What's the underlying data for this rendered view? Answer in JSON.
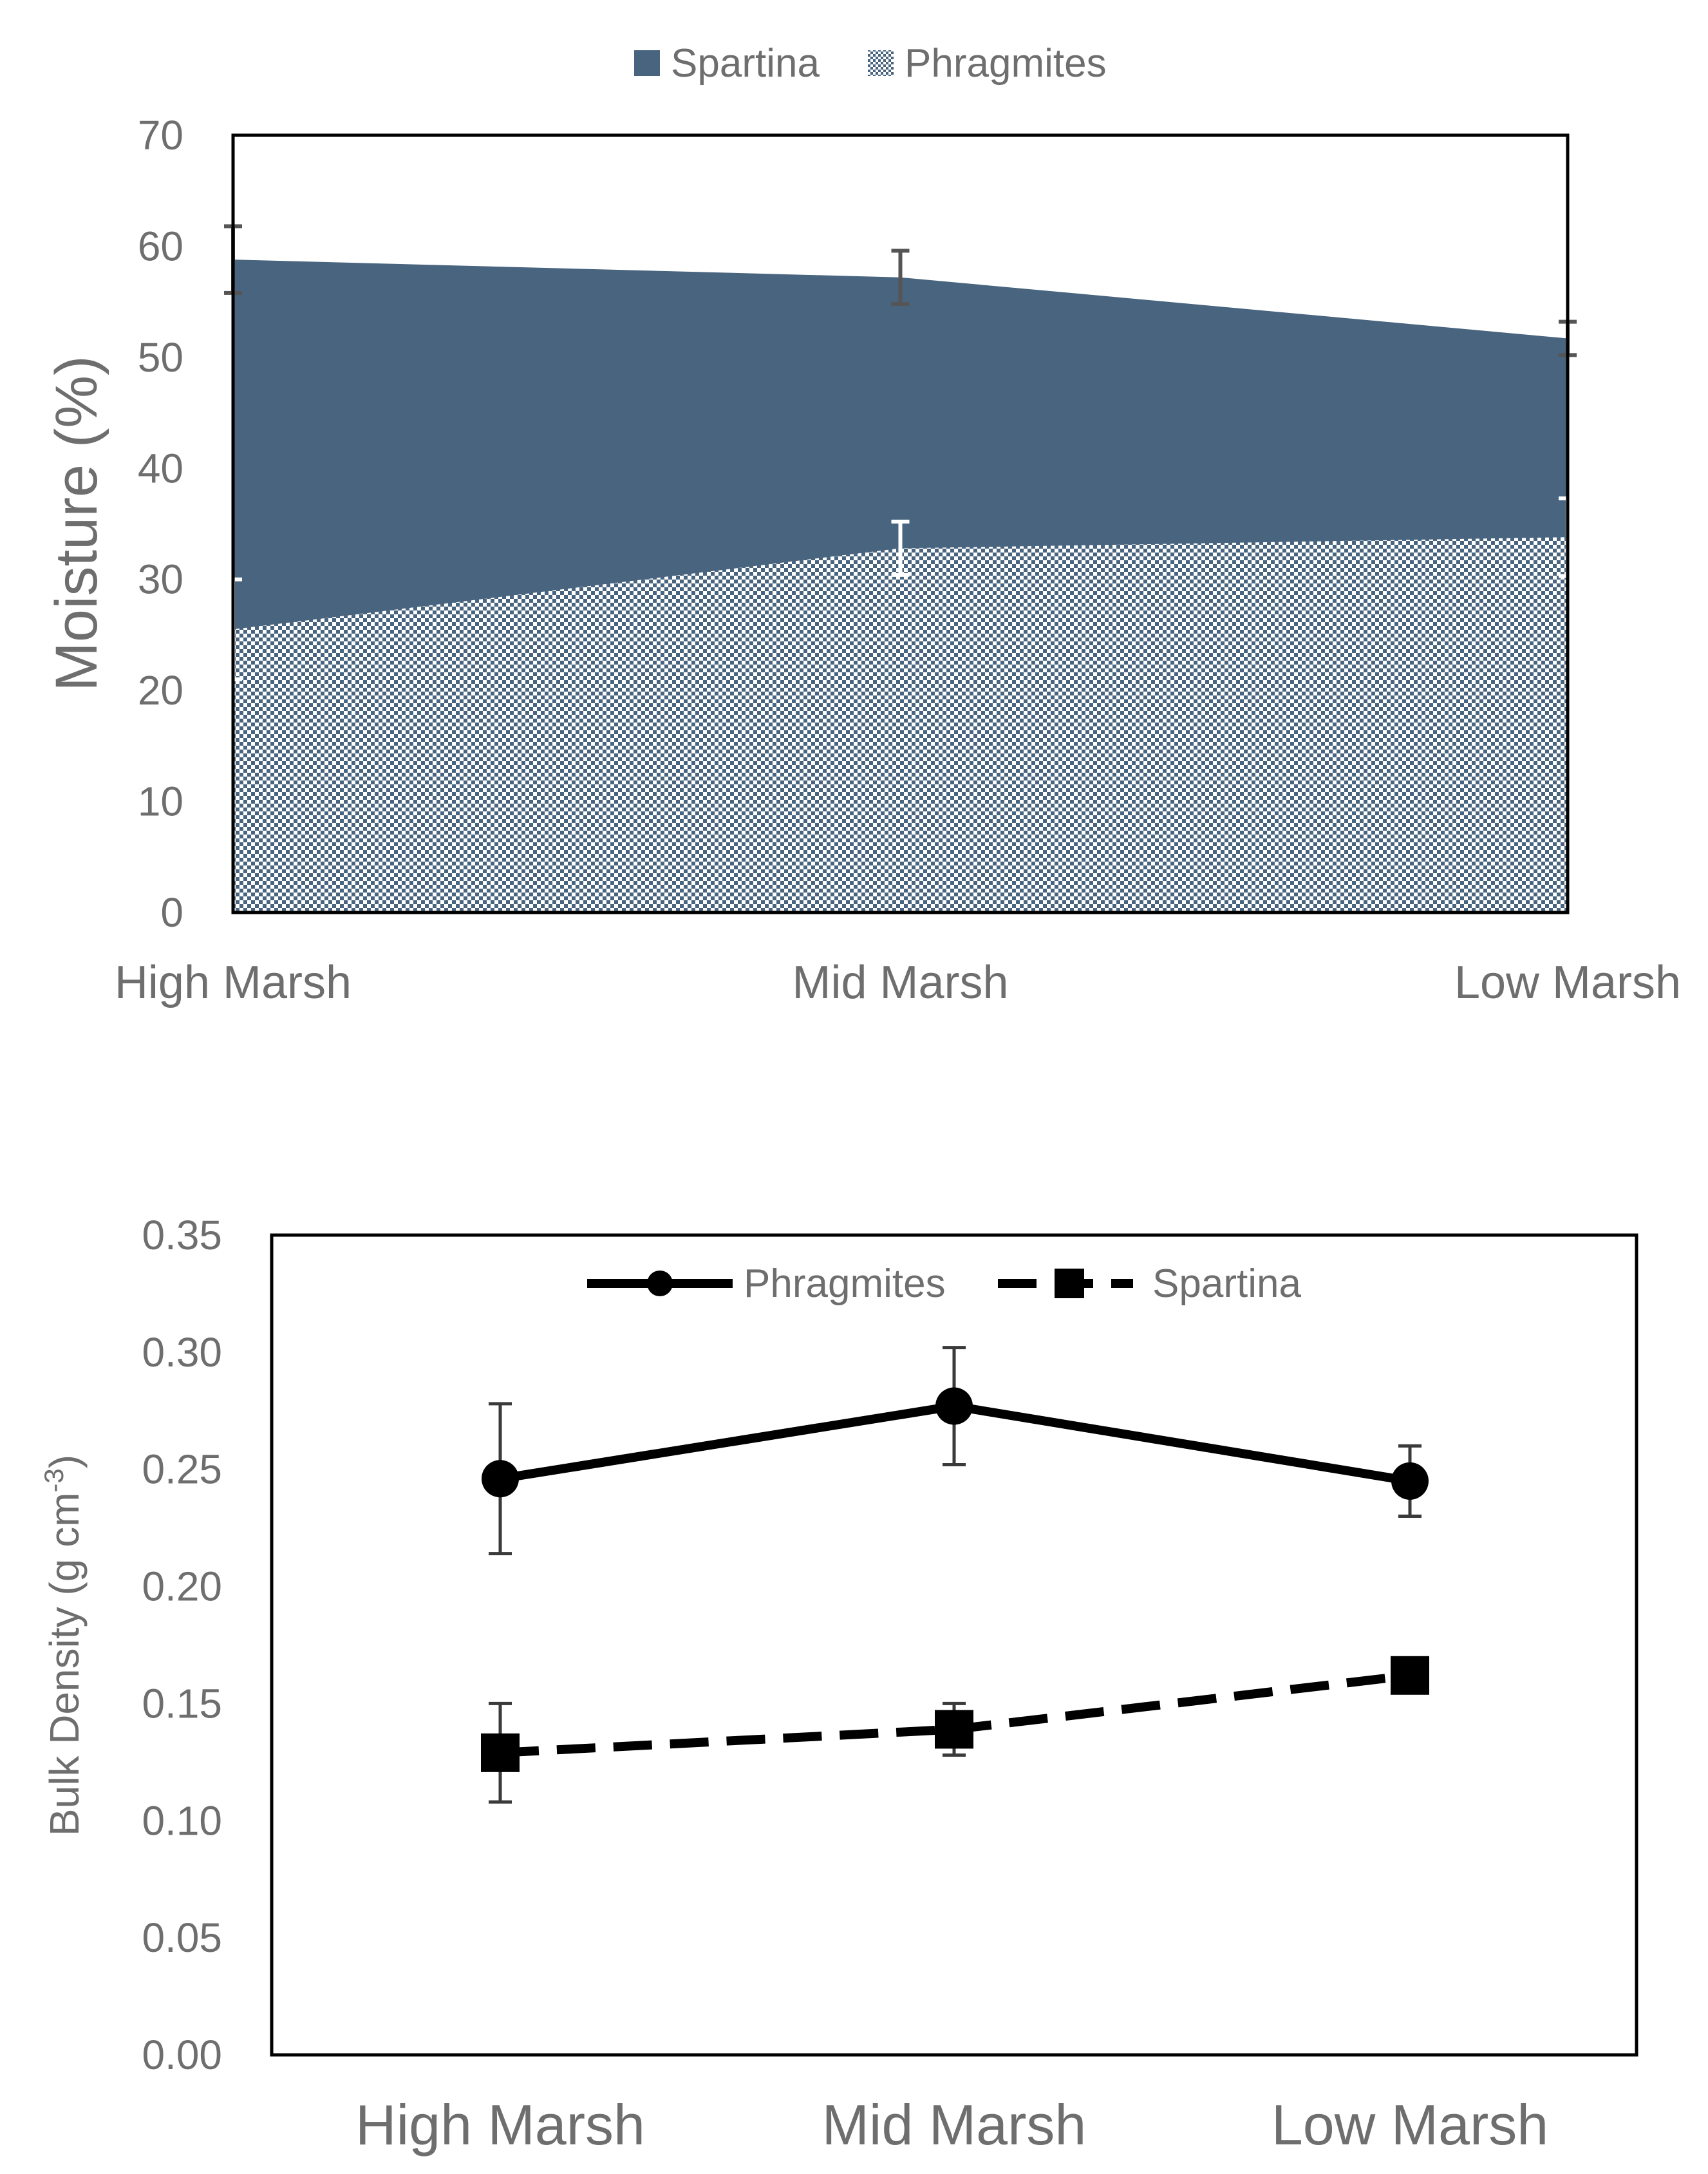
{
  "chart_data": [
    {
      "type": "area",
      "categories": [
        "High Marsh",
        "Mid Marsh",
        "Low Marsh"
      ],
      "ylabel": "Moisture (%)",
      "xlabel": "",
      "ylim": [
        0,
        70
      ],
      "yticks": [
        "0",
        "10",
        "20",
        "30",
        "40",
        "50",
        "60",
        "70"
      ],
      "legend_position": "top",
      "grid": false,
      "series": [
        {
          "name": "Spartina",
          "values": [
            58.8,
            57.2,
            51.7
          ],
          "errors": [
            3.0,
            2.4,
            1.5
          ],
          "color": "#48647f",
          "fill": "solid"
        },
        {
          "name": "Phragmites",
          "values": [
            25.5,
            32.8,
            33.8
          ],
          "errors": [
            4.5,
            2.4,
            3.5
          ],
          "color": "#48647f",
          "fill": "dotted"
        }
      ]
    },
    {
      "type": "line",
      "categories": [
        "High Marsh",
        "Mid Marsh",
        "Low Marsh"
      ],
      "ylabel_main": "Bulk Density (g cm",
      "ylabel_sup": "-3",
      "ylabel_end": ")",
      "xlabel": "",
      "ylim": [
        0,
        0.35
      ],
      "yticks": [
        "0.00",
        "0.05",
        "0.10",
        "0.15",
        "0.20",
        "0.25",
        "0.30",
        "0.35"
      ],
      "legend_position": "top-center",
      "grid": false,
      "series": [
        {
          "name": "Phragmites",
          "values": [
            0.246,
            0.277,
            0.245
          ],
          "errors": [
            0.032,
            0.025,
            0.015
          ],
          "marker": "circle",
          "line": "solid",
          "color": "#000000"
        },
        {
          "name": "Spartina",
          "values": [
            0.129,
            0.139,
            0.162
          ],
          "errors": [
            0.021,
            0.011,
            0.004
          ],
          "marker": "square",
          "line": "dashed",
          "color": "#000000"
        }
      ]
    }
  ]
}
